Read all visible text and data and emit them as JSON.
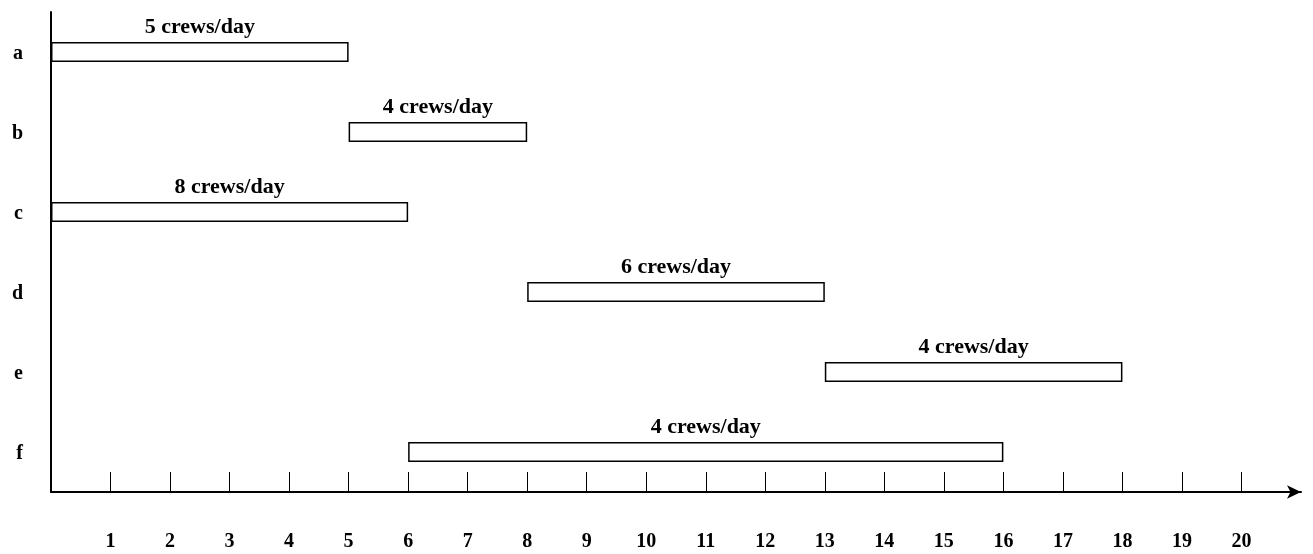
{
  "chart_data": {
    "type": "bar",
    "orientation": "horizontal",
    "categories": [
      "a",
      "b",
      "c",
      "d",
      "e",
      "f"
    ],
    "base": [
      0,
      5,
      0,
      8,
      13,
      6
    ],
    "values": [
      5,
      3,
      6,
      5,
      5,
      10
    ],
    "annotations": [
      "5 crews/day",
      "4 crews/day",
      "8 crews/day",
      "6 crews/day",
      "4 crews/day",
      "4 crews/day"
    ],
    "color": "#ffffff",
    "xlim": [
      0,
      21
    ],
    "xticks": [
      1,
      2,
      3,
      4,
      5,
      6,
      7,
      8,
      9,
      10,
      11,
      12,
      13,
      14,
      15,
      16,
      17,
      18,
      19,
      20
    ],
    "grid": false
  }
}
